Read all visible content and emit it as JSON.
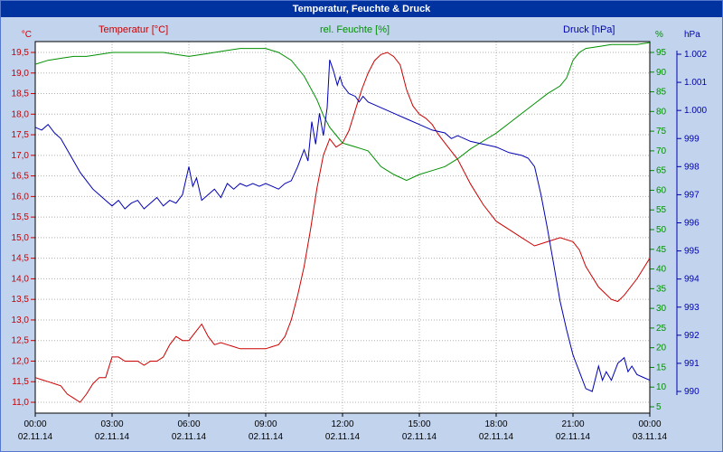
{
  "window": {
    "title": "Temperatur, Feuchte & Druck"
  },
  "legend": {
    "temperature": "Temperatur [°C]",
    "humidity": "rel. Feuchte [%]",
    "pressure": "Druck [hPa]"
  },
  "chart_data": {
    "type": "line",
    "title": "Temperatur, Feuchte & Druck",
    "colors": {
      "background": "#c2d3ee",
      "plot_bg": "#ffffff",
      "grid": "#b0b0b0",
      "border": "#000000",
      "x_text": "#000000"
    },
    "x_axis": {
      "hours": [
        0,
        3,
        6,
        9,
        12,
        15,
        18,
        21,
        24
      ],
      "time_labels": [
        "00:00",
        "03:00",
        "06:00",
        "09:00",
        "12:00",
        "15:00",
        "18:00",
        "21:00",
        "00:00"
      ],
      "date_labels": [
        "02.11.14",
        "02.11.14",
        "02.11.14",
        "02.11.14",
        "02.11.14",
        "02.11.14",
        "02.11.14",
        "02.11.14",
        "03.11.14"
      ]
    },
    "axes": {
      "temperature": {
        "unit": "°C",
        "color": "#cc0000",
        "min": 11.0,
        "max": 19.5,
        "step": 0.5,
        "tick_labels": [
          "19,5",
          "19,0",
          "18,5",
          "18,0",
          "17,5",
          "17,0",
          "16,5",
          "16,0",
          "15,5",
          "15,0",
          "14,5",
          "14,0",
          "13,5",
          "13,0",
          "12,5",
          "12,0",
          "11,5",
          "11,0"
        ]
      },
      "humidity": {
        "unit": "%",
        "color": "#009000",
        "min": 5,
        "max": 95,
        "step": 5,
        "tick_labels": [
          "95",
          "90",
          "85",
          "80",
          "75",
          "70",
          "65",
          "60",
          "55",
          "50",
          "45",
          "40",
          "35",
          "30",
          "25",
          "20",
          "15",
          "10",
          "5"
        ]
      },
      "pressure": {
        "unit": "hPa",
        "color": "#0000b4",
        "min": 990,
        "max": 1002,
        "step": 1,
        "tick_labels": [
          "1.002",
          "1.001",
          "1.000",
          "999",
          "998",
          "997",
          "996",
          "995",
          "994",
          "993",
          "992",
          "991",
          "990"
        ]
      }
    },
    "series": [
      {
        "name": "Temperatur",
        "key": "temperature",
        "axis": "temperature",
        "color": "#cc0000",
        "points": [
          [
            0,
            11.6
          ],
          [
            0.25,
            11.55
          ],
          [
            0.5,
            11.5
          ],
          [
            0.75,
            11.45
          ],
          [
            1,
            11.4
          ],
          [
            1.25,
            11.2
          ],
          [
            1.5,
            11.1
          ],
          [
            1.75,
            11.0
          ],
          [
            2,
            11.2
          ],
          [
            2.25,
            11.45
          ],
          [
            2.5,
            11.6
          ],
          [
            2.75,
            11.6
          ],
          [
            3,
            12.1
          ],
          [
            3.25,
            12.1
          ],
          [
            3.5,
            12.0
          ],
          [
            3.75,
            12.0
          ],
          [
            4,
            12.0
          ],
          [
            4.25,
            11.9
          ],
          [
            4.5,
            12.0
          ],
          [
            4.75,
            12.0
          ],
          [
            5,
            12.1
          ],
          [
            5.25,
            12.4
          ],
          [
            5.5,
            12.6
          ],
          [
            5.75,
            12.5
          ],
          [
            6,
            12.5
          ],
          [
            6.25,
            12.7
          ],
          [
            6.5,
            12.9
          ],
          [
            6.75,
            12.6
          ],
          [
            7,
            12.4
          ],
          [
            7.25,
            12.45
          ],
          [
            7.5,
            12.4
          ],
          [
            7.75,
            12.35
          ],
          [
            8,
            12.3
          ],
          [
            8.5,
            12.3
          ],
          [
            9,
            12.3
          ],
          [
            9.25,
            12.35
          ],
          [
            9.5,
            12.4
          ],
          [
            9.75,
            12.6
          ],
          [
            10,
            13.0
          ],
          [
            10.25,
            13.6
          ],
          [
            10.5,
            14.3
          ],
          [
            10.75,
            15.2
          ],
          [
            11,
            16.2
          ],
          [
            11.25,
            17.0
          ],
          [
            11.5,
            17.4
          ],
          [
            11.75,
            17.2
          ],
          [
            12,
            17.3
          ],
          [
            12.25,
            17.6
          ],
          [
            12.5,
            18.1
          ],
          [
            12.75,
            18.6
          ],
          [
            13,
            19.0
          ],
          [
            13.25,
            19.3
          ],
          [
            13.5,
            19.45
          ],
          [
            13.75,
            19.5
          ],
          [
            14,
            19.4
          ],
          [
            14.25,
            19.2
          ],
          [
            14.5,
            18.6
          ],
          [
            14.75,
            18.2
          ],
          [
            15,
            18.0
          ],
          [
            15.25,
            17.9
          ],
          [
            15.5,
            17.75
          ],
          [
            15.75,
            17.5
          ],
          [
            16,
            17.3
          ],
          [
            16.5,
            16.9
          ],
          [
            17,
            16.3
          ],
          [
            17.5,
            15.8
          ],
          [
            18,
            15.4
          ],
          [
            18.5,
            15.2
          ],
          [
            19,
            15.0
          ],
          [
            19.5,
            14.8
          ],
          [
            20,
            14.9
          ],
          [
            20.5,
            15.0
          ],
          [
            21,
            14.9
          ],
          [
            21.25,
            14.7
          ],
          [
            21.5,
            14.3
          ],
          [
            22,
            13.8
          ],
          [
            22.5,
            13.5
          ],
          [
            22.75,
            13.45
          ],
          [
            23,
            13.6
          ],
          [
            23.5,
            14.0
          ],
          [
            24,
            14.5
          ]
        ]
      },
      {
        "name": "rel. Feuchte",
        "key": "humidity",
        "axis": "humidity",
        "color": "#009000",
        "points": [
          [
            0,
            92
          ],
          [
            0.5,
            93
          ],
          [
            1,
            93.5
          ],
          [
            1.5,
            94
          ],
          [
            2,
            94
          ],
          [
            2.5,
            94.5
          ],
          [
            3,
            95
          ],
          [
            3.5,
            95
          ],
          [
            4,
            95
          ],
          [
            4.5,
            95
          ],
          [
            5,
            95
          ],
          [
            5.5,
            94.5
          ],
          [
            6,
            94
          ],
          [
            6.5,
            94.5
          ],
          [
            7,
            95
          ],
          [
            7.5,
            95.5
          ],
          [
            8,
            96
          ],
          [
            8.5,
            96
          ],
          [
            9,
            96
          ],
          [
            9.5,
            95
          ],
          [
            10,
            93
          ],
          [
            10.5,
            89
          ],
          [
            11,
            83
          ],
          [
            11.25,
            79
          ],
          [
            11.5,
            76
          ],
          [
            11.75,
            74
          ],
          [
            12,
            72
          ],
          [
            12.25,
            71.5
          ],
          [
            12.5,
            71
          ],
          [
            12.75,
            70.5
          ],
          [
            13,
            70
          ],
          [
            13.25,
            68
          ],
          [
            13.5,
            66
          ],
          [
            13.75,
            65
          ],
          [
            14,
            64
          ],
          [
            14.5,
            62.5
          ],
          [
            15,
            64
          ],
          [
            15.5,
            65
          ],
          [
            16,
            66
          ],
          [
            16.5,
            68
          ],
          [
            17,
            70.5
          ],
          [
            17.5,
            72.5
          ],
          [
            18,
            74.5
          ],
          [
            18.5,
            77
          ],
          [
            19,
            79.5
          ],
          [
            19.5,
            82
          ],
          [
            20,
            84.5
          ],
          [
            20.5,
            86.5
          ],
          [
            20.75,
            88.5
          ],
          [
            21,
            93
          ],
          [
            21.25,
            95
          ],
          [
            21.5,
            96
          ],
          [
            22,
            96.5
          ],
          [
            22.5,
            97
          ],
          [
            23,
            97
          ],
          [
            23.5,
            97
          ],
          [
            24,
            97.5
          ]
        ]
      },
      {
        "name": "Druck",
        "key": "pressure",
        "axis": "pressure",
        "color": "#0000b4",
        "points": [
          [
            0,
            999.4
          ],
          [
            0.25,
            999.3
          ],
          [
            0.5,
            999.5
          ],
          [
            0.75,
            999.2
          ],
          [
            1,
            999.0
          ],
          [
            1.25,
            998.6
          ],
          [
            1.5,
            998.2
          ],
          [
            1.75,
            997.8
          ],
          [
            2,
            997.5
          ],
          [
            2.25,
            997.2
          ],
          [
            2.5,
            997.0
          ],
          [
            2.75,
            996.8
          ],
          [
            3,
            996.6
          ],
          [
            3.25,
            996.8
          ],
          [
            3.5,
            996.5
          ],
          [
            3.75,
            996.7
          ],
          [
            4,
            996.8
          ],
          [
            4.25,
            996.5
          ],
          [
            4.5,
            996.7
          ],
          [
            4.75,
            996.9
          ],
          [
            5,
            996.6
          ],
          [
            5.25,
            996.8
          ],
          [
            5.5,
            996.7
          ],
          [
            5.75,
            997.0
          ],
          [
            6,
            998.0
          ],
          [
            6.15,
            997.3
          ],
          [
            6.3,
            997.6
          ],
          [
            6.5,
            996.8
          ],
          [
            6.75,
            997.0
          ],
          [
            7,
            997.2
          ],
          [
            7.25,
            996.9
          ],
          [
            7.5,
            997.4
          ],
          [
            7.75,
            997.2
          ],
          [
            8,
            997.4
          ],
          [
            8.25,
            997.3
          ],
          [
            8.5,
            997.4
          ],
          [
            8.75,
            997.3
          ],
          [
            9,
            997.4
          ],
          [
            9.25,
            997.3
          ],
          [
            9.5,
            997.2
          ],
          [
            9.75,
            997.4
          ],
          [
            10,
            997.5
          ],
          [
            10.25,
            998.0
          ],
          [
            10.5,
            998.6
          ],
          [
            10.65,
            998.2
          ],
          [
            10.8,
            999.6
          ],
          [
            10.95,
            998.8
          ],
          [
            11.1,
            999.9
          ],
          [
            11.25,
            999.1
          ],
          [
            11.4,
            1000.1
          ],
          [
            11.5,
            1001.8
          ],
          [
            11.65,
            1001.4
          ],
          [
            11.8,
            1000.9
          ],
          [
            11.9,
            1001.2
          ],
          [
            12,
            1000.9
          ],
          [
            12.25,
            1000.6
          ],
          [
            12.5,
            1000.5
          ],
          [
            12.65,
            1000.3
          ],
          [
            12.8,
            1000.5
          ],
          [
            13,
            1000.3
          ],
          [
            13.25,
            1000.2
          ],
          [
            13.5,
            1000.1
          ],
          [
            13.75,
            1000.0
          ],
          [
            14,
            999.9
          ],
          [
            14.5,
            999.7
          ],
          [
            15,
            999.5
          ],
          [
            15.5,
            999.3
          ],
          [
            16,
            999.2
          ],
          [
            16.25,
            999.0
          ],
          [
            16.5,
            999.1
          ],
          [
            17,
            998.9
          ],
          [
            17.5,
            998.8
          ],
          [
            18,
            998.7
          ],
          [
            18.5,
            998.5
          ],
          [
            19,
            998.4
          ],
          [
            19.25,
            998.3
          ],
          [
            19.5,
            998.0
          ],
          [
            19.75,
            997.0
          ],
          [
            20,
            995.8
          ],
          [
            20.25,
            994.5
          ],
          [
            20.5,
            993.2
          ],
          [
            20.75,
            992.2
          ],
          [
            21,
            991.3
          ],
          [
            21.25,
            990.7
          ],
          [
            21.5,
            990.1
          ],
          [
            21.75,
            990.0
          ],
          [
            22,
            990.9
          ],
          [
            22.15,
            990.4
          ],
          [
            22.3,
            990.7
          ],
          [
            22.5,
            990.4
          ],
          [
            22.75,
            991.0
          ],
          [
            23,
            991.2
          ],
          [
            23.15,
            990.7
          ],
          [
            23.3,
            990.9
          ],
          [
            23.5,
            990.6
          ],
          [
            23.75,
            990.5
          ],
          [
            24,
            990.4
          ]
        ]
      }
    ]
  }
}
